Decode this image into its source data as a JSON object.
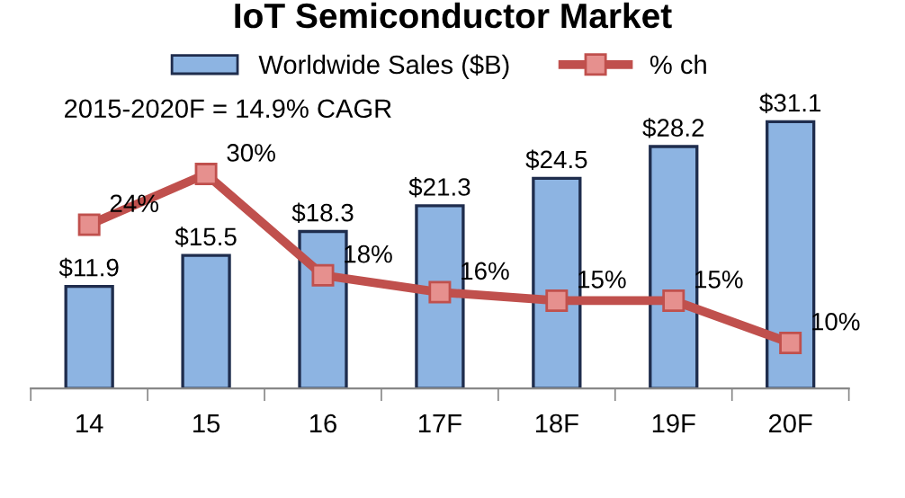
{
  "chart_data": {
    "type": "bar",
    "title": "IoT Semiconductor Market",
    "categories": [
      "14",
      "15",
      "16",
      "17F",
      "18F",
      "19F",
      "20F"
    ],
    "series": [
      {
        "name": "Worldwide Sales ($B)",
        "color": "#8db4e2",
        "values": [
          11.9,
          15.5,
          18.3,
          21.3,
          24.5,
          28.2,
          31.1
        ],
        "value_labels": [
          "$11.9",
          "$15.5",
          "$18.3",
          "$21.3",
          "$24.5",
          "$28.2",
          "$31.1"
        ]
      },
      {
        "name": "% ch",
        "type": "line",
        "axis": "y2",
        "color": "#c0504d",
        "values": [
          24,
          30,
          18,
          16,
          15,
          15,
          10
        ],
        "value_labels": [
          "24%",
          "30%",
          "18%",
          "16%",
          "15%",
          "15%",
          "10%"
        ]
      }
    ],
    "tick_labels": "x",
    "marker": "square",
    "legend": "top",
    "grid": false,
    "annotations": [
      "2015-2020F = 14.9% CAGR"
    ]
  }
}
